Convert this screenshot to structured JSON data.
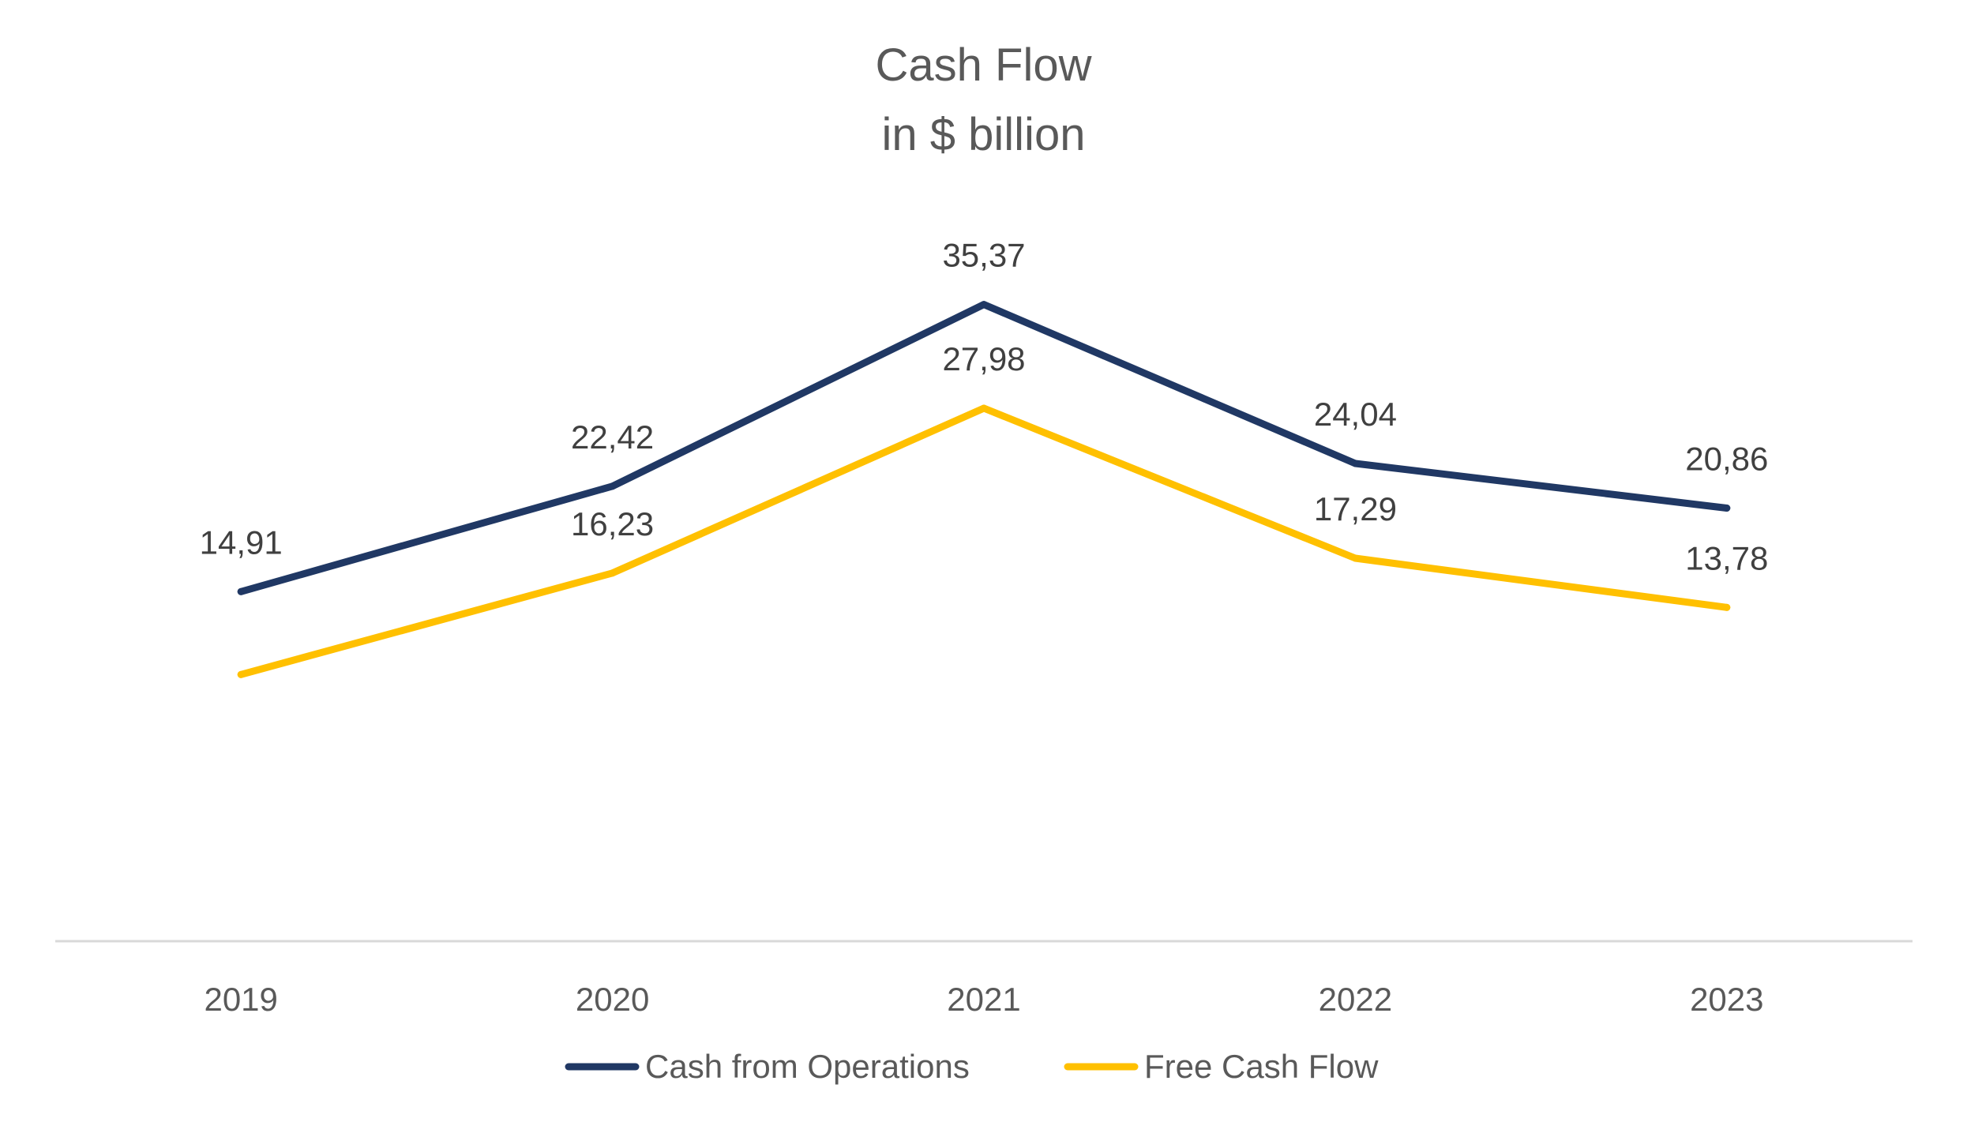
{
  "chart_data": {
    "type": "line",
    "title": "Cash Flow",
    "subtitle": "in $ billion",
    "xlabel": "",
    "ylabel": "",
    "categories": [
      "2019",
      "2020",
      "2021",
      "2022",
      "2023"
    ],
    "series": [
      {
        "name": "Cash from Operations",
        "values": [
          14.91,
          22.42,
          35.37,
          24.04,
          20.86
        ],
        "labels": [
          "14,91",
          "22,42",
          "35,37",
          "24,04",
          "20,86"
        ],
        "color": "#203864"
      },
      {
        "name": "Free Cash Flow",
        "values": [
          9.0,
          16.23,
          27.98,
          17.29,
          13.78
        ],
        "labels": [
          "",
          "16,23",
          "27,98",
          "17,29",
          "13,78"
        ],
        "color": "#FFC000"
      }
    ],
    "ylim": [
      -10,
      43
    ],
    "grid": false,
    "y_axis_visible": false,
    "legend": "bottom"
  }
}
